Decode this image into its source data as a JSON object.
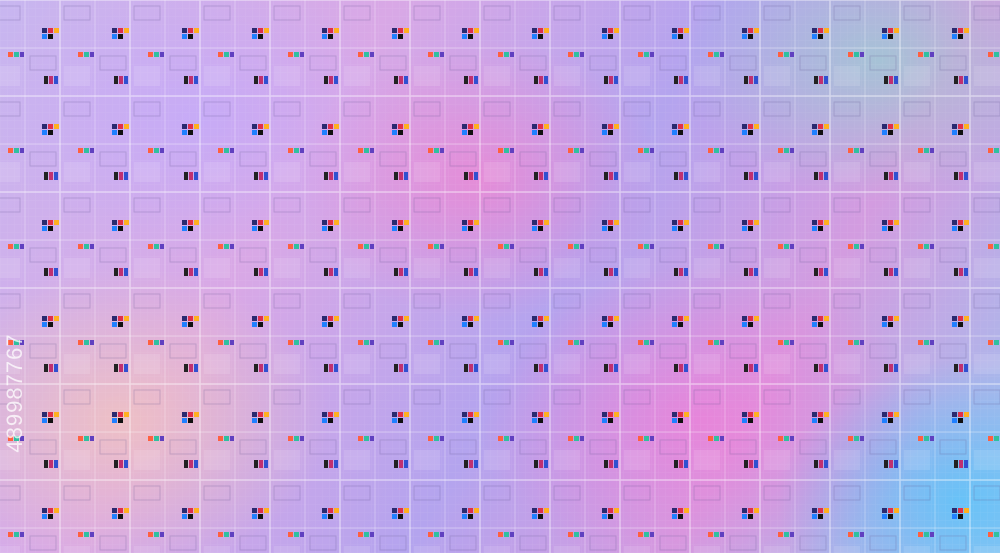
{
  "watermark": "489987767"
}
